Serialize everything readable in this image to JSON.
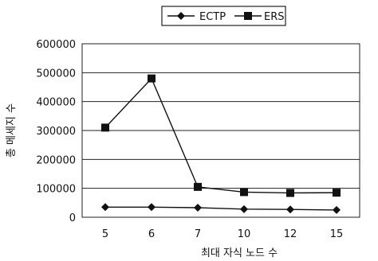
{
  "chart_data": {
    "type": "line",
    "title": "",
    "xlabel": "최대 자식 노드 수",
    "ylabel": "총 메세지 수",
    "categories": [
      "5",
      "6",
      "7",
      "10",
      "12",
      "15"
    ],
    "ylim": [
      0,
      600000
    ],
    "yticks": [
      0,
      100000,
      200000,
      300000,
      400000,
      500000,
      600000
    ],
    "ytick_labels": [
      "0",
      "100000",
      "200000",
      "300000",
      "400000",
      "500000",
      "600000"
    ],
    "grid": "horizontal",
    "legend_placement": "top",
    "series": [
      {
        "name": "ECTP",
        "marker": "diamond",
        "color": "#111111",
        "values": [
          35000,
          35000,
          33000,
          28000,
          27000,
          25000
        ]
      },
      {
        "name": "ERS",
        "marker": "square",
        "color": "#111111",
        "values": [
          310000,
          480000,
          105000,
          87000,
          84000,
          85000
        ]
      }
    ]
  }
}
